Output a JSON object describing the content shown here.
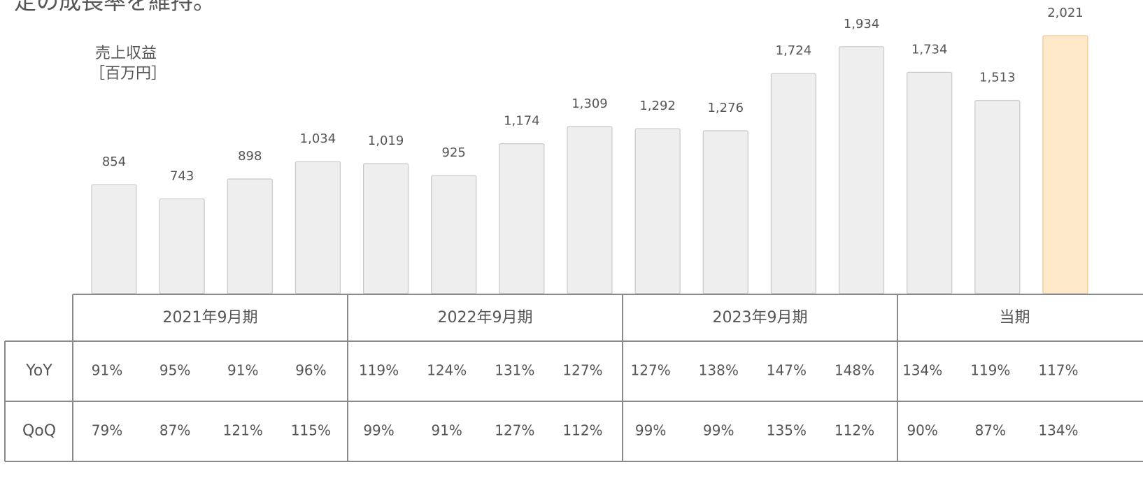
{
  "heading": "定の成長率を維持。",
  "chart_data": {
    "type": "bar",
    "y_label": [
      "売上収益",
      "［百万円］"
    ],
    "categories": [
      null,
      null,
      null,
      null,
      null,
      null,
      null,
      null,
      null,
      null,
      null,
      null,
      null,
      null,
      null
    ],
    "values": [
      854,
      743,
      898,
      1034,
      1019,
      925,
      1174,
      1309,
      1292,
      1276,
      1724,
      1934,
      1734,
      1513,
      2021
    ],
    "value_labels": [
      "854",
      "743",
      "898",
      "1,034",
      "1,019",
      "925",
      "1,174",
      "1,309",
      "1,292",
      "1,276",
      "1,724",
      "1,934",
      "1,734",
      "1,513",
      "2,021"
    ],
    "colors": [
      "#eeeeee",
      "#eeeeee",
      "#eeeeee",
      "#eeeeee",
      "#eeeeee",
      "#eeeeee",
      "#eeeeee",
      "#eeeeee",
      "#eeeeee",
      "#eeeeee",
      "#eeeeee",
      "#eeeeee",
      "#eeeeee",
      "#eeeeee",
      "#fde9c9"
    ],
    "ylim": [
      0,
      2300
    ]
  },
  "table": {
    "groups": [
      "2021年9月期",
      "2022年9月期",
      "2023年9月期",
      "当期"
    ],
    "rows": [
      {
        "label": "YoY",
        "cells": [
          "91%",
          "95%",
          "91%",
          "96%",
          "119%",
          "124%",
          "131%",
          "127%",
          "127%",
          "138%",
          "147%",
          "148%",
          "134%",
          "119%",
          "117%"
        ]
      },
      {
        "label": "QoQ",
        "cells": [
          "79%",
          "87%",
          "121%",
          "115%",
          "99%",
          "91%",
          "127%",
          "112%",
          "99%",
          "99%",
          "135%",
          "112%",
          "90%",
          "87%",
          "134%"
        ]
      }
    ]
  }
}
